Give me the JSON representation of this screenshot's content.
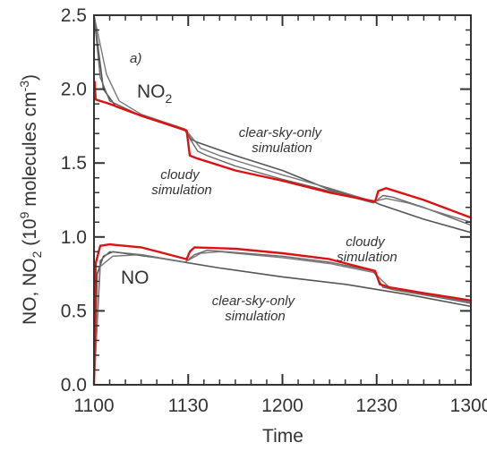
{
  "chart_data": {
    "type": "line",
    "panel_label": "a)",
    "xlabel": "Time",
    "ylabel": {
      "prefix": "NO, NO",
      "sub": "2",
      "mid": " (10",
      "sup1": "9",
      "mid2": " molecules cm",
      "sup2": "-3",
      "suffix": ")"
    },
    "xlim": [
      1100,
      1300
    ],
    "ylim": [
      0.0,
      2.5
    ],
    "xticks": [
      {
        "label": "1100",
        "v": 0
      },
      {
        "label": "1130",
        "v": 30
      },
      {
        "label": "1200",
        "v": 60
      },
      {
        "label": "1230",
        "v": 90
      },
      {
        "label": "1300",
        "v": 120
      }
    ],
    "yticks": [
      "0.0",
      "0.5",
      "1.0",
      "1.5",
      "2.0",
      "2.5"
    ],
    "grid": false,
    "species_labels": [
      {
        "base": "NO",
        "sub": "2"
      },
      {
        "base": "NO",
        "sub": ""
      }
    ],
    "annotations": [
      {
        "lines": [
          "clear-sky-only",
          "simulation"
        ]
      },
      {
        "lines": [
          "cloudy",
          "simulation"
        ]
      },
      {
        "lines": [
          "cloudy",
          "simulation"
        ]
      },
      {
        "lines": [
          "clear-sky-only",
          "simulation"
        ]
      }
    ],
    "series": [
      {
        "color": "#dd1111",
        "width": 2.4,
        "points": [
          [
            0.2,
            2.05
          ],
          [
            0.5,
            1.93
          ],
          [
            5,
            1.9
          ],
          [
            15,
            1.82
          ],
          [
            29.5,
            1.72
          ],
          [
            30.5,
            1.55
          ],
          [
            33,
            1.53
          ],
          [
            45,
            1.45
          ],
          [
            60,
            1.38
          ],
          [
            75,
            1.3
          ],
          [
            89.5,
            1.24
          ],
          [
            90.5,
            1.31
          ],
          [
            93,
            1.33
          ],
          [
            105,
            1.25
          ],
          [
            120,
            1.13
          ]
        ]
      },
      {
        "color": "#dd1111",
        "width": 2.4,
        "points": [
          [
            0,
            0.0
          ],
          [
            0.5,
            0.82
          ],
          [
            2,
            0.94
          ],
          [
            5,
            0.95
          ],
          [
            15,
            0.93
          ],
          [
            29.5,
            0.85
          ],
          [
            30.5,
            0.9
          ],
          [
            32,
            0.93
          ],
          [
            45,
            0.92
          ],
          [
            60,
            0.89
          ],
          [
            75,
            0.85
          ],
          [
            89.5,
            0.77
          ],
          [
            91,
            0.68
          ],
          [
            94,
            0.66
          ],
          [
            105,
            0.62
          ],
          [
            120,
            0.57
          ]
        ]
      },
      {
        "color": "#555555",
        "width": 1.6,
        "points": [
          [
            0,
            2.5
          ],
          [
            3,
            2.0
          ],
          [
            7,
            1.88
          ],
          [
            15,
            1.82
          ],
          [
            29,
            1.72
          ],
          [
            31,
            1.66
          ],
          [
            33,
            1.64
          ],
          [
            45,
            1.55
          ],
          [
            60,
            1.45
          ],
          [
            75,
            1.32
          ],
          [
            89,
            1.24
          ],
          [
            91,
            1.22
          ],
          [
            105,
            1.12
          ],
          [
            120,
            1.03
          ]
        ]
      },
      {
        "color": "#666666",
        "width": 1.4,
        "points": [
          [
            0,
            2.5
          ],
          [
            2,
            2.08
          ],
          [
            5,
            1.92
          ],
          [
            15,
            1.82
          ],
          [
            29,
            1.72
          ],
          [
            33,
            1.58
          ],
          [
            36,
            1.55
          ],
          [
            45,
            1.48
          ],
          [
            60,
            1.39
          ],
          [
            75,
            1.31
          ],
          [
            89,
            1.23
          ],
          [
            92,
            1.28
          ],
          [
            95,
            1.27
          ],
          [
            105,
            1.2
          ],
          [
            120,
            1.08
          ]
        ]
      },
      {
        "color": "#777777",
        "width": 1.4,
        "points": [
          [
            0,
            2.5
          ],
          [
            4,
            2.1
          ],
          [
            8,
            1.92
          ],
          [
            15,
            1.83
          ],
          [
            29,
            1.73
          ],
          [
            34,
            1.6
          ],
          [
            40,
            1.55
          ],
          [
            60,
            1.42
          ],
          [
            75,
            1.33
          ],
          [
            89,
            1.24
          ],
          [
            93,
            1.26
          ],
          [
            100,
            1.23
          ],
          [
            120,
            1.1
          ]
        ]
      },
      {
        "color": "#555555",
        "width": 1.6,
        "points": [
          [
            0,
            0.0
          ],
          [
            1,
            0.75
          ],
          [
            3,
            0.87
          ],
          [
            6,
            0.9
          ],
          [
            20,
            0.86
          ],
          [
            40,
            0.79
          ],
          [
            60,
            0.73
          ],
          [
            80,
            0.68
          ],
          [
            100,
            0.61
          ],
          [
            120,
            0.53
          ]
        ]
      },
      {
        "color": "#666666",
        "width": 1.4,
        "points": [
          [
            0,
            0.0
          ],
          [
            2,
            0.84
          ],
          [
            5,
            0.9
          ],
          [
            15,
            0.88
          ],
          [
            29,
            0.83
          ],
          [
            32,
            0.88
          ],
          [
            36,
            0.91
          ],
          [
            60,
            0.87
          ],
          [
            75,
            0.83
          ],
          [
            89,
            0.77
          ],
          [
            92,
            0.66
          ],
          [
            96,
            0.64
          ],
          [
            110,
            0.59
          ],
          [
            120,
            0.55
          ]
        ]
      },
      {
        "color": "#777777",
        "width": 1.4,
        "points": [
          [
            0,
            0.0
          ],
          [
            2,
            0.8
          ],
          [
            6,
            0.87
          ],
          [
            15,
            0.88
          ],
          [
            29,
            0.83
          ],
          [
            34,
            0.89
          ],
          [
            40,
            0.9
          ],
          [
            60,
            0.86
          ],
          [
            75,
            0.82
          ],
          [
            89,
            0.76
          ],
          [
            94,
            0.66
          ],
          [
            100,
            0.63
          ],
          [
            120,
            0.56
          ]
        ]
      }
    ]
  }
}
